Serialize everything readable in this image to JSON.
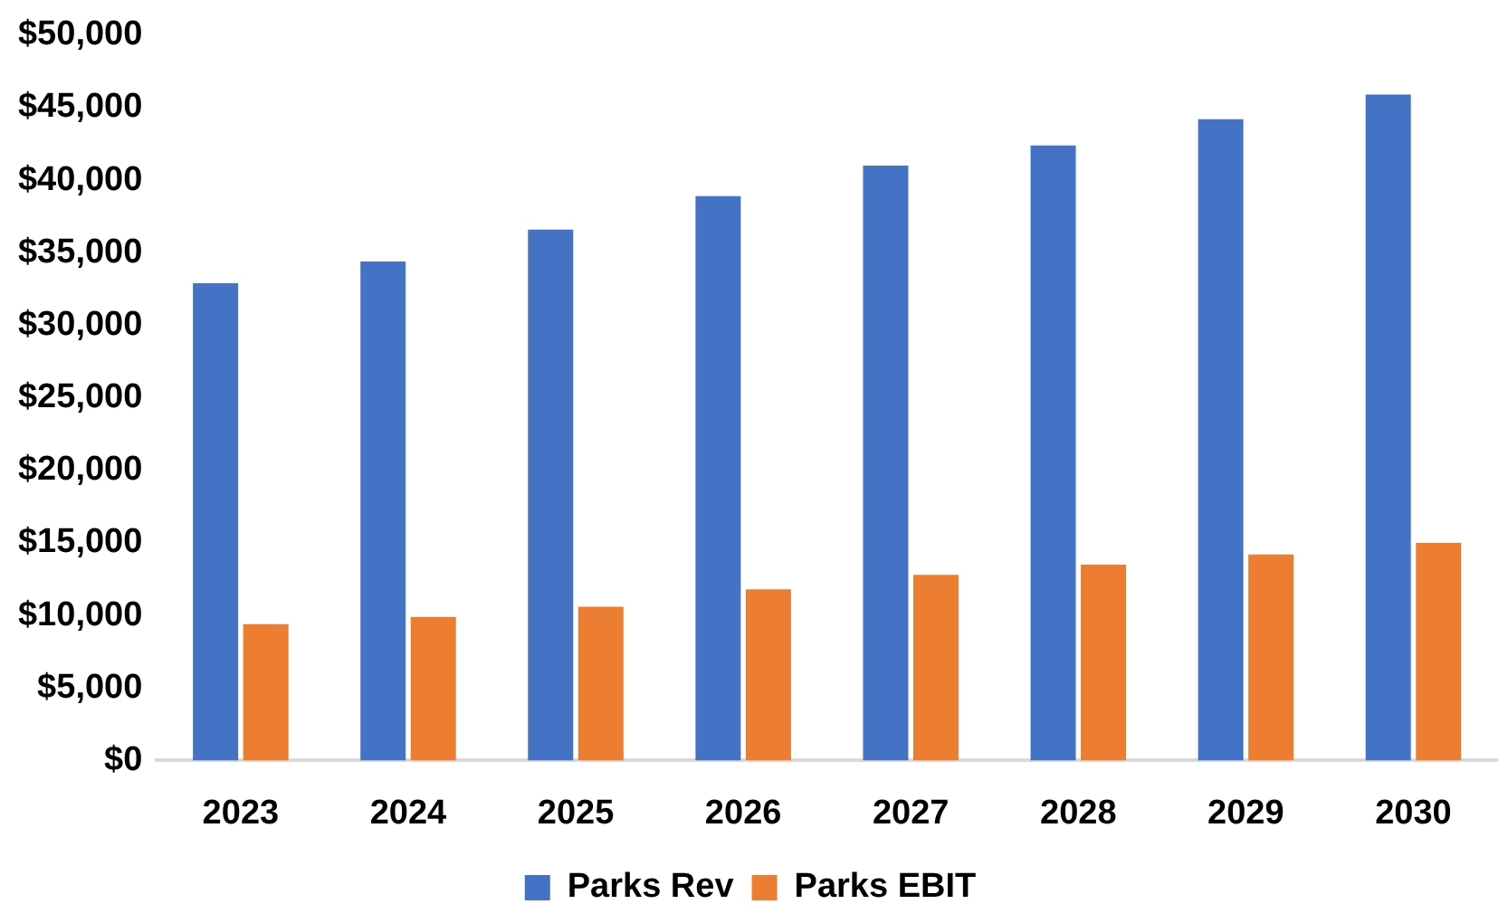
{
  "chart_data": {
    "type": "bar",
    "categories": [
      "2023",
      "2024",
      "2025",
      "2026",
      "2027",
      "2028",
      "2029",
      "2030"
    ],
    "series": [
      {
        "name": "Parks Rev",
        "color": "#4472c4",
        "values": [
          32900,
          34400,
          36600,
          38900,
          41000,
          42400,
          44200,
          45900
        ]
      },
      {
        "name": "Parks EBIT",
        "color": "#ed7d31",
        "values": [
          9400,
          9900,
          10600,
          11800,
          12800,
          13500,
          14200,
          15000
        ]
      }
    ],
    "ylim": [
      0,
      50000
    ],
    "yticks": [
      {
        "value": 0,
        "label": "$0"
      },
      {
        "value": 5000,
        "label": "$5,000"
      },
      {
        "value": 10000,
        "label": "$10,000"
      },
      {
        "value": 15000,
        "label": "$15,000"
      },
      {
        "value": 20000,
        "label": "$20,000"
      },
      {
        "value": 25000,
        "label": "$25,000"
      },
      {
        "value": 30000,
        "label": "$30,000"
      },
      {
        "value": 35000,
        "label": "$35,000"
      },
      {
        "value": 40000,
        "label": "$40,000"
      },
      {
        "value": 45000,
        "label": "$45,000"
      },
      {
        "value": 50000,
        "label": "$50,000"
      }
    ],
    "grid": false,
    "legend": "bottom"
  }
}
